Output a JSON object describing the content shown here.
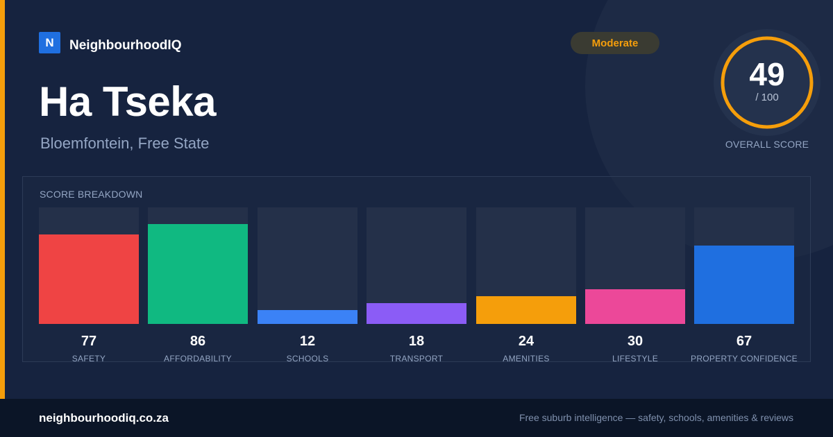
{
  "brand": {
    "logo_letter": "N",
    "name": "NeighbourhoodIQ"
  },
  "suburb": {
    "name": "Ha Tseka",
    "location": "Bloemfontein, Free State"
  },
  "badge": {
    "label": "Moderate",
    "color": "#f59e0b"
  },
  "overall": {
    "score": "49",
    "max_label": "/ 100",
    "score_fraction": 0.49,
    "label": "OVERALL SCORE",
    "ring_color": "#f59e0b"
  },
  "breakdown": {
    "title": "SCORE BREAKDOWN",
    "items": [
      {
        "label": "SAFETY",
        "value": "77",
        "score": 77,
        "color": "#ef4444"
      },
      {
        "label": "AFFORDABILITY",
        "value": "86",
        "score": 86,
        "color": "#10b981"
      },
      {
        "label": "SCHOOLS",
        "value": "12",
        "score": 12,
        "color": "#3b82f6"
      },
      {
        "label": "TRANSPORT",
        "value": "18",
        "score": 18,
        "color": "#8b5cf6"
      },
      {
        "label": "AMENITIES",
        "value": "24",
        "score": 24,
        "color": "#f59e0b"
      },
      {
        "label": "LIFESTYLE",
        "value": "30",
        "score": 30,
        "color": "#ec4899"
      },
      {
        "label": "PROPERTY CONFIDENCE",
        "value": "67",
        "score": 67,
        "color": "#1f6fe0"
      }
    ]
  },
  "footer": {
    "domain": "neighbourhoodiq.co.za",
    "tagline": "Free suburb intelligence — safety, schools, amenities & reviews"
  }
}
